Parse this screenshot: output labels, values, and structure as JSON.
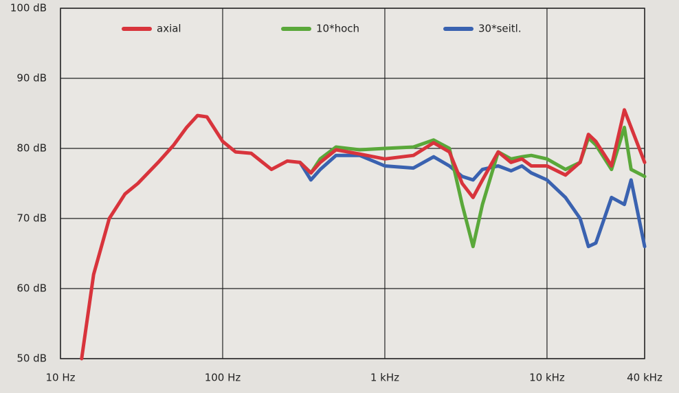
{
  "chart_data": {
    "type": "line",
    "x": [
      13.5,
      16,
      20,
      25,
      30,
      40,
      50,
      60,
      70,
      80,
      100,
      120,
      150,
      200,
      250,
      300,
      350,
      400,
      500,
      700,
      1000,
      1500,
      2000,
      2500,
      3000,
      3500,
      4000,
      5000,
      6000,
      7000,
      8000,
      10000,
      13000,
      16000,
      18000,
      20000,
      25000,
      30000,
      33000,
      40000
    ],
    "series": [
      {
        "name": "axial",
        "color": "#d8343c",
        "values": [
          50,
          62,
          70,
          73.5,
          75,
          78,
          80.5,
          83,
          84.7,
          84.5,
          81,
          79.5,
          79.3,
          77,
          78.2,
          78,
          76.5,
          78,
          79.8,
          79.2,
          78.5,
          79,
          80.8,
          79.5,
          75,
          73,
          75.5,
          79.5,
          78,
          78.5,
          77.5,
          77.5,
          76.2,
          78,
          82,
          81,
          77.5,
          85.5,
          83,
          78
        ]
      },
      {
        "name": "10*hoch",
        "color": "#5aa83a",
        "values": [
          null,
          null,
          null,
          null,
          null,
          null,
          null,
          null,
          null,
          null,
          null,
          null,
          null,
          null,
          null,
          78,
          76.5,
          78.5,
          80.2,
          79.8,
          80,
          80.2,
          81.2,
          80,
          72,
          66,
          72,
          79.5,
          78.5,
          78.8,
          79,
          78.5,
          77,
          78,
          81.5,
          80.5,
          77,
          83,
          77,
          76
        ]
      },
      {
        "name": "30*seitl.",
        "color": "#3a62b0",
        "values": [
          null,
          null,
          null,
          null,
          null,
          null,
          null,
          null,
          null,
          null,
          null,
          null,
          null,
          null,
          null,
          78,
          75.5,
          77,
          79,
          79,
          77.5,
          77.2,
          78.8,
          77.5,
          76,
          75.5,
          77,
          77.5,
          76.8,
          77.5,
          76.5,
          75.5,
          73,
          70,
          66,
          66.5,
          73,
          72,
          75.5,
          66
        ]
      }
    ],
    "xlim": [
      10,
      40000
    ],
    "log_x": true,
    "xticks": [
      {
        "value": 10,
        "label": "10 Hz"
      },
      {
        "value": 100,
        "label": "100 Hz"
      },
      {
        "value": 1000,
        "label": "1 kHz"
      },
      {
        "value": 10000,
        "label": "10 kHz"
      },
      {
        "value": 40000,
        "label": "40 kHz"
      }
    ],
    "ylim": [
      50,
      100
    ],
    "yticks": [
      {
        "value": 50,
        "label": "50 dB"
      },
      {
        "value": 60,
        "label": "60 dB"
      },
      {
        "value": 70,
        "label": "70 dB"
      },
      {
        "value": 80,
        "label": "80 dB"
      },
      {
        "value": 90,
        "label": "90 dB"
      },
      {
        "value": 100,
        "label": "100 dB"
      }
    ],
    "grid": true
  }
}
